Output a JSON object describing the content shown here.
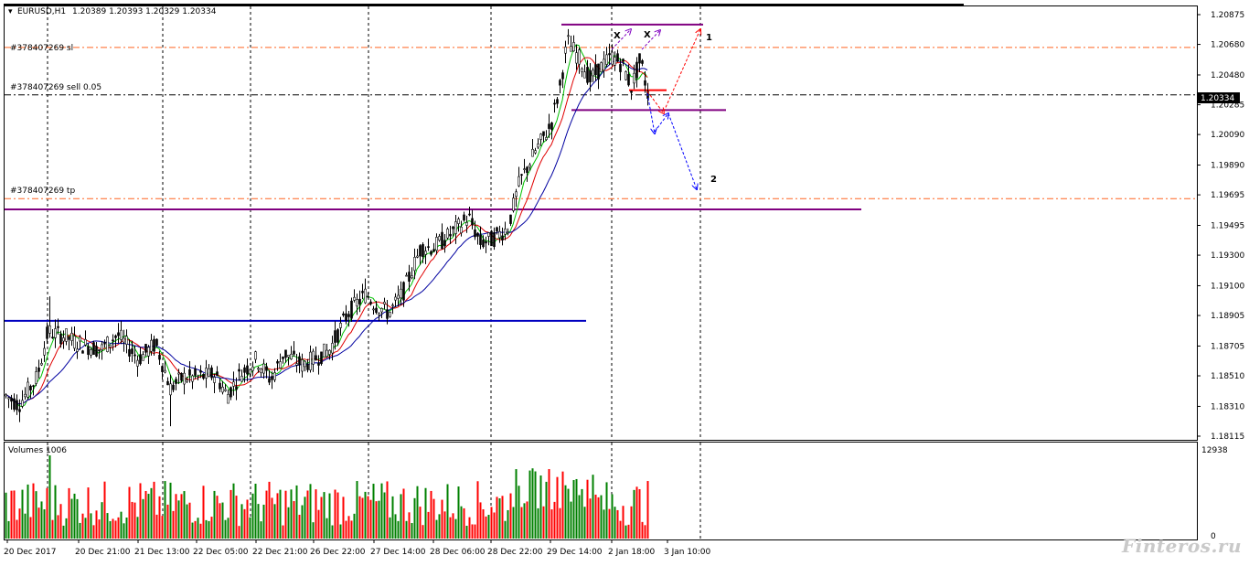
{
  "header": {
    "symbol_label": "EURUSD,H1",
    "ohlc_label": "1.20389 1.20393 1.20329 1.20334"
  },
  "order_lines": {
    "sl_label": "#378407269 sl",
    "sell_label": "#378407269 sell 0.05",
    "tp_label": "#378407269 tp"
  },
  "volumes_panel": {
    "label": "Volumes 1006",
    "max_label": "12938",
    "zero_label": "0"
  },
  "scenario_labels": [
    "1",
    "2"
  ],
  "cross_marks": [
    "X",
    "X"
  ],
  "watermark": "Finteros.ru",
  "colors": {
    "bull_volume": "#008000",
    "bear_volume": "#ff0000",
    "ma_fast": "#00c000",
    "ma_mid": "#e00000",
    "ma_slow": "#0000a0",
    "support_line": "#0000c0",
    "range_line": "#800080",
    "order_line": "#ff6420",
    "arrow_up": "#ff0000",
    "arrow_down": "#0000ff",
    "arrow_cross": "#8000c0"
  },
  "chart_data": {
    "type": "candlestick",
    "symbol": "EURUSD",
    "timeframe": "H1",
    "y_ticks": [
      "1.20875",
      "1.20680",
      "1.20480",
      "1.20285",
      "1.20090",
      "1.19890",
      "1.19695",
      "1.19495",
      "1.19300",
      "1.19100",
      "1.18905",
      "1.18705",
      "1.18510",
      "1.18310",
      "1.18115"
    ],
    "y_range": [
      1.18085,
      1.20935
    ],
    "current_price": "1.20334",
    "x_tick_labels": [
      "20 Dec 2017",
      "20 Dec 21:00",
      "21 Dec 13:00",
      "22 Dec 05:00",
      "22 Dec 21:00",
      "26 Dec 22:00",
      "27 Dec 14:00",
      "28 Dec 06:00",
      "28 Dec 22:00",
      "29 Dec 14:00",
      "2 Jan 18:00",
      "3 Jan 10:00"
    ],
    "levels": {
      "stop_loss": 1.2066,
      "sell_entry": 1.2035,
      "take_profit": 1.1967,
      "resistance_top": 1.2081,
      "range_bottom": 1.2025,
      "support_purple": 1.196,
      "support_blue": 1.1887
    },
    "key_waypoints": [
      {
        "label": "20 Dec 2017",
        "price": 1.1838
      },
      {
        "label": "20 Dec 21:00",
        "price": 1.1872
      },
      {
        "label": "21 Dec 13:00",
        "price": 1.1862
      },
      {
        "label": "22 Dec 05:00",
        "price": 1.185
      },
      {
        "label": "22 Dec 21:00",
        "price": 1.1857
      },
      {
        "label": "26 Dec 22:00",
        "price": 1.1862
      },
      {
        "label": "27 Dec 14:00",
        "price": 1.1895
      },
      {
        "label": "28 Dec 06:00",
        "price": 1.1935
      },
      {
        "label": "28 Dec 22:00",
        "price": 1.195
      },
      {
        "label": "29 Dec 14:00",
        "price": 1.2005
      },
      {
        "label": "2 Jan 18:00",
        "price": 1.205
      },
      {
        "label": "3 Jan 10:00",
        "price": 1.2033
      }
    ],
    "volume_max": 12938
  }
}
